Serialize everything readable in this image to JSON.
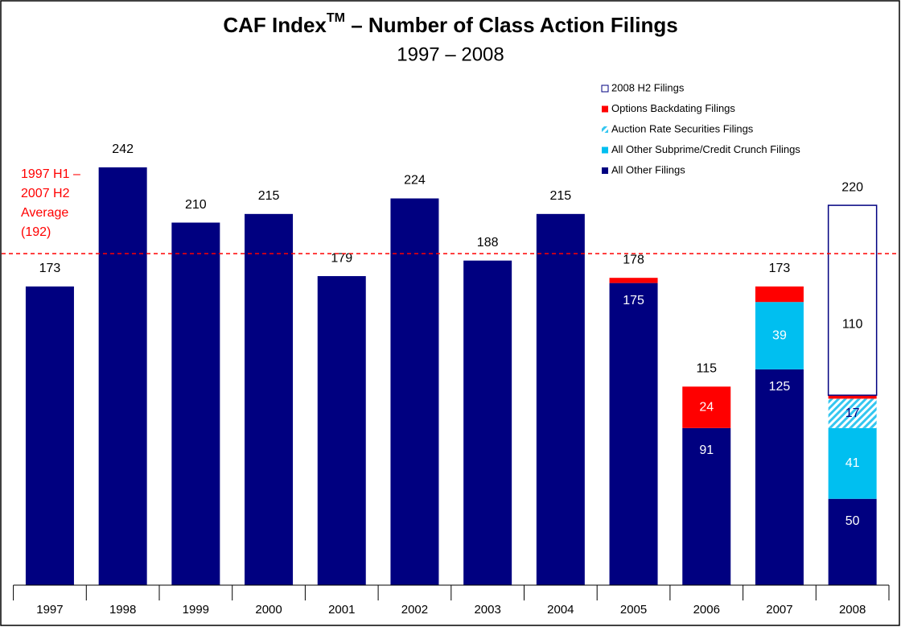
{
  "chart_data": {
    "type": "stacked_bar",
    "title": [
      "CAF Index",
      "TM",
      " – Number of Class Action Filings"
    ],
    "subtitle": "1997 – 2008",
    "categories": [
      "1997",
      "1998",
      "1999",
      "2000",
      "2001",
      "2002",
      "2003",
      "2004",
      "2005",
      "2006",
      "2007",
      "2008"
    ],
    "totals": [
      173,
      242,
      210,
      215,
      179,
      224,
      188,
      215,
      178,
      115,
      173,
      220
    ],
    "series": [
      {
        "name": "All Other Filings",
        "color": "#000080",
        "label_color": "#ffffff",
        "values": [
          173,
          242,
          210,
          215,
          179,
          224,
          188,
          215,
          175,
          91,
          125,
          50
        ],
        "value_labels": [
          null,
          null,
          null,
          null,
          null,
          null,
          null,
          null,
          "175",
          "91",
          "125",
          "50"
        ]
      },
      {
        "name": "All Other Subprime/Credit Crunch Filings",
        "color": "#00bff0",
        "label_color": "#ffffff",
        "values": [
          null,
          null,
          null,
          null,
          null,
          null,
          null,
          null,
          null,
          null,
          39,
          41
        ],
        "value_labels": [
          null,
          null,
          null,
          null,
          null,
          null,
          null,
          null,
          null,
          null,
          "39",
          "41"
        ]
      },
      {
        "name": "Auction Rate Securities Filings",
        "color": "#33c6f0",
        "hatch": true,
        "label_color": "#000080",
        "values": [
          null,
          null,
          null,
          null,
          null,
          null,
          null,
          null,
          null,
          null,
          null,
          17
        ],
        "value_labels": [
          null,
          null,
          null,
          null,
          null,
          null,
          null,
          null,
          null,
          null,
          null,
          "17"
        ]
      },
      {
        "name": "Options Backdating Filings",
        "color": "#ff0000",
        "label_color": "#ffffff",
        "values": [
          null,
          null,
          null,
          null,
          null,
          null,
          null,
          null,
          3,
          24,
          9,
          2
        ],
        "value_labels": [
          null,
          null,
          null,
          null,
          null,
          null,
          null,
          null,
          null,
          "24",
          null,
          null
        ]
      },
      {
        "name": "2008 H2 Filings",
        "color": "#ffffff",
        "stroke": "#000080",
        "label_color": "#000000",
        "values": [
          null,
          null,
          null,
          null,
          null,
          null,
          null,
          null,
          null,
          null,
          null,
          110
        ],
        "value_labels": [
          null,
          null,
          null,
          null,
          null,
          null,
          null,
          null,
          null,
          null,
          null,
          "110"
        ]
      }
    ],
    "average": {
      "value": 192,
      "color": "#ff0000",
      "label": [
        "1997 H1 –",
        "2007 H2",
        "Average",
        "(192)"
      ]
    },
    "ylim": [
      0,
      300
    ]
  }
}
